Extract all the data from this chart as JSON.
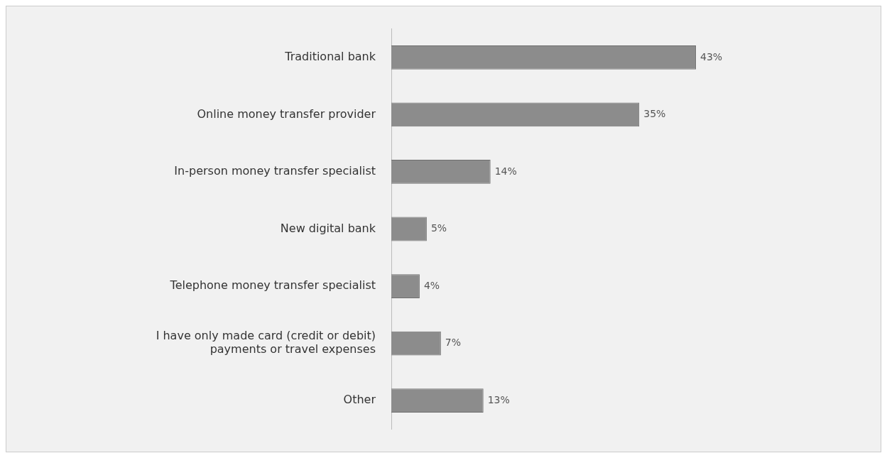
{
  "chart_data": {
    "type": "bar",
    "orientation": "horizontal",
    "categories": [
      "Traditional bank",
      "Online money transfer provider",
      "In-person money transfer specialist",
      "New digital bank",
      "Telephone money transfer specialist",
      "I have only made card (credit or debit) payments or travel expenses",
      "Other"
    ],
    "values": [
      43,
      35,
      14,
      5,
      4,
      7,
      13
    ],
    "value_labels": [
      "43%",
      "35%",
      "14%",
      "5%",
      "4%",
      "7%",
      "13%"
    ],
    "color": "#8c8c8c",
    "tick_labels": "y",
    "grid": false,
    "legend": false
  }
}
